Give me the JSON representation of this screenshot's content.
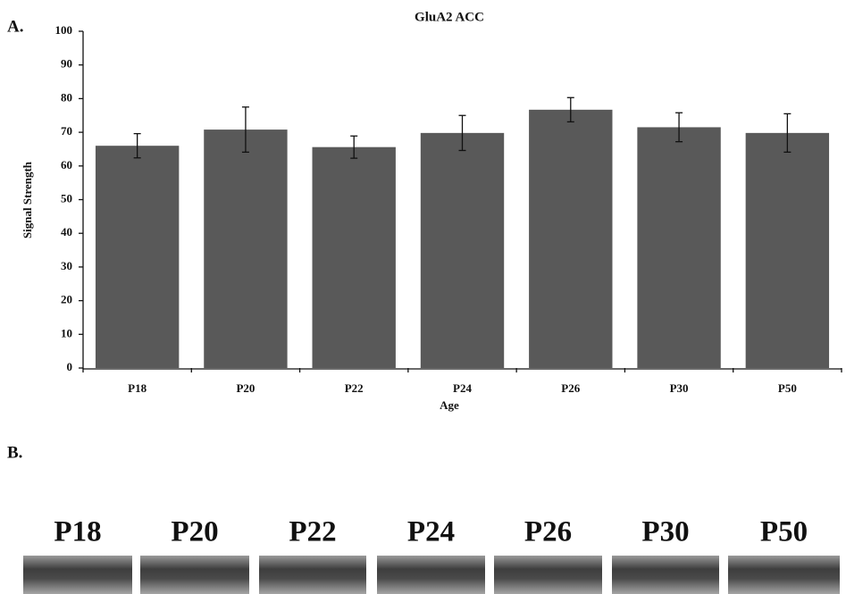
{
  "panel_labels": [
    "A.",
    "B."
  ],
  "chart_data": {
    "type": "bar",
    "title": "GluA2 ACC",
    "x_label": "Age",
    "y_label": "Signal Strength",
    "categories": [
      "P18",
      "P20",
      "P22",
      "P24",
      "P26",
      "P30",
      "P50"
    ],
    "values": [
      66,
      70.8,
      65.6,
      69.8,
      76.7,
      71.5,
      69.8
    ],
    "errors": [
      3.6,
      6.7,
      3.3,
      5.2,
      3.6,
      4.3,
      5.7
    ],
    "color": "#595959",
    "ylim": [
      0,
      100
    ],
    "yticks": [
      0,
      10,
      20,
      30,
      40,
      50,
      60,
      70,
      80,
      90,
      100
    ],
    "grid": false
  },
  "blot_labels": [
    "P18",
    "P20",
    "P22",
    "P24",
    "P26",
    "P30",
    "P50"
  ]
}
